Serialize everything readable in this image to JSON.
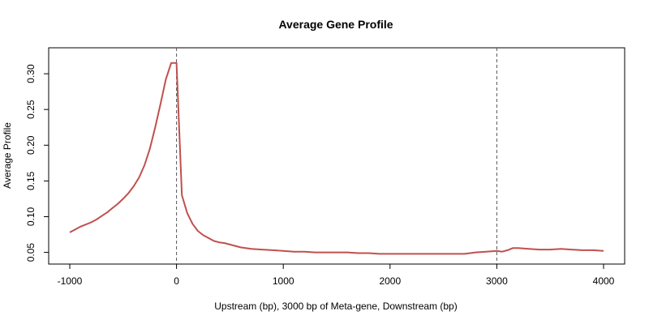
{
  "chart_data": {
    "type": "line",
    "title": "Average Gene Profile",
    "xlabel": "Upstream (bp), 3000 bp of Meta-gene, Downstream (bp)",
    "ylabel": "Average Profile",
    "xlim": [
      -1000,
      4000
    ],
    "ylim": [
      0.045,
      0.325
    ],
    "x_ticks": [
      -1000,
      0,
      1000,
      2000,
      3000,
      4000
    ],
    "y_ticks": [
      0.05,
      0.1,
      0.15,
      0.2,
      0.25,
      0.3
    ],
    "y_tick_labels": [
      "0.05",
      "0.10",
      "0.15",
      "0.20",
      "0.25",
      "0.30"
    ],
    "vlines": [
      0,
      3000
    ],
    "grid": false,
    "legend": "none",
    "series": [
      {
        "color": "#c0504d",
        "x": [
          -1000,
          -950,
          -900,
          -850,
          -800,
          -750,
          -700,
          -650,
          -600,
          -550,
          -500,
          -450,
          -400,
          -350,
          -300,
          -250,
          -200,
          -150,
          -100,
          -50,
          0,
          50,
          100,
          150,
          200,
          250,
          300,
          350,
          400,
          450,
          500,
          600,
          700,
          800,
          900,
          1000,
          1100,
          1200,
          1300,
          1400,
          1500,
          1600,
          1700,
          1800,
          1900,
          2000,
          2100,
          2200,
          2300,
          2400,
          2500,
          2600,
          2700,
          2800,
          2900,
          3000,
          3050,
          3100,
          3150,
          3200,
          3300,
          3400,
          3500,
          3600,
          3700,
          3800,
          3900,
          4000
        ],
        "y": [
          0.078,
          0.082,
          0.086,
          0.089,
          0.092,
          0.096,
          0.101,
          0.106,
          0.112,
          0.118,
          0.125,
          0.133,
          0.143,
          0.155,
          0.172,
          0.195,
          0.225,
          0.258,
          0.292,
          0.315,
          0.315,
          0.13,
          0.105,
          0.09,
          0.08,
          0.074,
          0.07,
          0.066,
          0.064,
          0.063,
          0.061,
          0.057,
          0.055,
          0.054,
          0.053,
          0.052,
          0.051,
          0.051,
          0.05,
          0.05,
          0.05,
          0.05,
          0.049,
          0.049,
          0.048,
          0.048,
          0.048,
          0.048,
          0.048,
          0.048,
          0.048,
          0.048,
          0.048,
          0.05,
          0.051,
          0.052,
          0.051,
          0.053,
          0.056,
          0.056,
          0.055,
          0.054,
          0.054,
          0.055,
          0.054,
          0.053,
          0.053,
          0.052
        ]
      }
    ]
  }
}
